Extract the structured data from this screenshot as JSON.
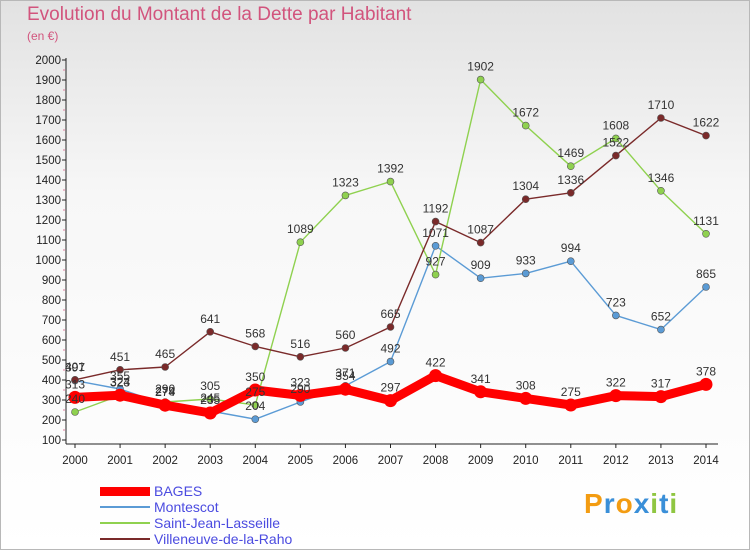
{
  "title": "Evolution du Montant de la Dette par Habitant",
  "unit": "(en €)",
  "logo": "Proxiti",
  "chart_data": {
    "type": "line",
    "x": [
      2000,
      2001,
      2002,
      2003,
      2004,
      2005,
      2006,
      2007,
      2008,
      2009,
      2010,
      2011,
      2012,
      2013,
      2014
    ],
    "ylim": [
      100,
      2000
    ],
    "ytick_step": 100,
    "grid": false,
    "legend_position": "bottom-left",
    "series": [
      {
        "name": "BAGES",
        "color": "#ff0000",
        "values": [
          313,
          324,
          274,
          235,
          350,
          323,
          354,
          297,
          422,
          341,
          308,
          275,
          322,
          317,
          378
        ]
      },
      {
        "name": "Montescot",
        "color": "#5b9bd5",
        "values": [
          397,
          355,
          278,
          245,
          204,
          290,
          371,
          492,
          1071,
          909,
          933,
          994,
          723,
          652,
          865
        ]
      },
      {
        "name": "Saint-Jean-Lasseille",
        "color": "#8fd14f",
        "values": [
          240,
          323,
          290,
          305,
          275,
          1089,
          1323,
          1392,
          927,
          1902,
          1672,
          1469,
          1608,
          1346,
          1131
        ]
      },
      {
        "name": "Villeneuve-de-la-Raho",
        "color": "#7a2a2a",
        "values": [
          401,
          451,
          465,
          641,
          568,
          516,
          560,
          665,
          1192,
          1087,
          1304,
          1336,
          1522,
          1710,
          1622
        ]
      }
    ]
  }
}
